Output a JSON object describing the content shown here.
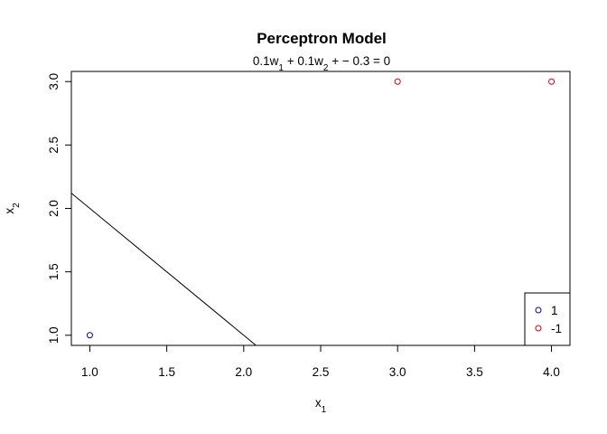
{
  "chart_data": {
    "type": "scatter",
    "title": "Perceptron Model",
    "subtitle": {
      "parts": [
        {
          "t": "0.1w"
        },
        {
          "t": "1",
          "sub": true
        },
        {
          "t": " + 0.1w"
        },
        {
          "t": "2",
          "sub": true
        },
        {
          "t": " + − 0.3 = 0"
        }
      ]
    },
    "xlabel": {
      "main": "x",
      "sub": "1"
    },
    "ylabel": {
      "main": "x",
      "sub": "2"
    },
    "xlim": [
      0.88,
      4.12
    ],
    "ylim": [
      0.92,
      3.08
    ],
    "xticks": [
      1.0,
      1.5,
      2.0,
      2.5,
      3.0,
      3.5,
      4.0
    ],
    "xtick_labels": [
      "1.0",
      "1.5",
      "2.0",
      "2.5",
      "3.0",
      "3.5",
      "4.0"
    ],
    "yticks": [
      1.0,
      1.5,
      2.0,
      2.5,
      3.0
    ],
    "ytick_labels": [
      "1.0",
      "1.5",
      "2.0",
      "2.5",
      "3.0"
    ],
    "series": [
      {
        "name": "1",
        "color": "#0000cc",
        "x": [
          1.0
        ],
        "y": [
          1.0
        ]
      },
      {
        "name": "-1",
        "color": "#dd0000",
        "x": [
          3.0,
          4.0
        ],
        "y": [
          3.0,
          3.0
        ]
      }
    ],
    "line": {
      "x": [
        0.88,
        2.08
      ],
      "y": [
        2.12,
        0.92
      ],
      "color": "#000000"
    },
    "legend": {
      "position": "bottom-right"
    },
    "grid": false
  }
}
